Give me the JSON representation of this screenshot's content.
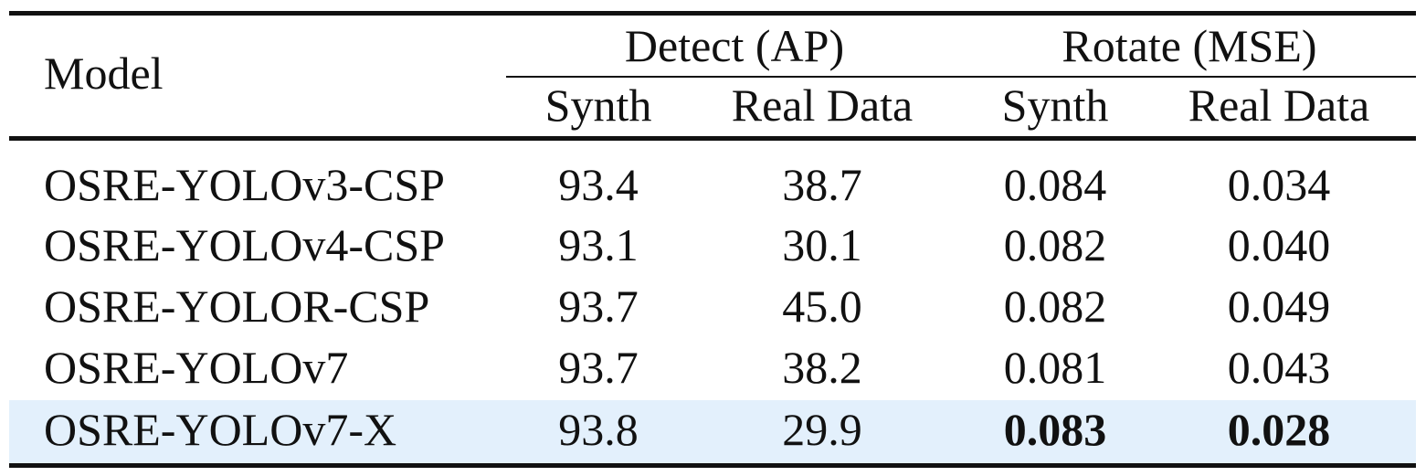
{
  "table": {
    "header": {
      "model": "Model",
      "group1": "Detect (AP)",
      "group2": "Rotate (MSE)",
      "subcols": [
        "Synth",
        "Real Data",
        "Synth",
        "Real Data"
      ]
    },
    "rows": [
      {
        "model": "OSRE-YOLOv3-CSP",
        "values": [
          "93.4",
          "38.7",
          "0.084",
          "0.034"
        ]
      },
      {
        "model": "OSRE-YOLOv4-CSP",
        "values": [
          "93.1",
          "30.1",
          "0.082",
          "0.040"
        ]
      },
      {
        "model": "OSRE-YOLOR-CSP",
        "values": [
          "93.7",
          "45.0",
          "0.082",
          "0.049"
        ]
      },
      {
        "model": "OSRE-YOLOv7",
        "values": [
          "93.7",
          "38.2",
          "0.081",
          "0.043"
        ]
      },
      {
        "model": "OSRE-YOLOv7-X",
        "values": [
          "93.8",
          "29.9",
          "0.083",
          "0.028"
        ]
      }
    ],
    "highlight_color": "#e3f0fc"
  }
}
